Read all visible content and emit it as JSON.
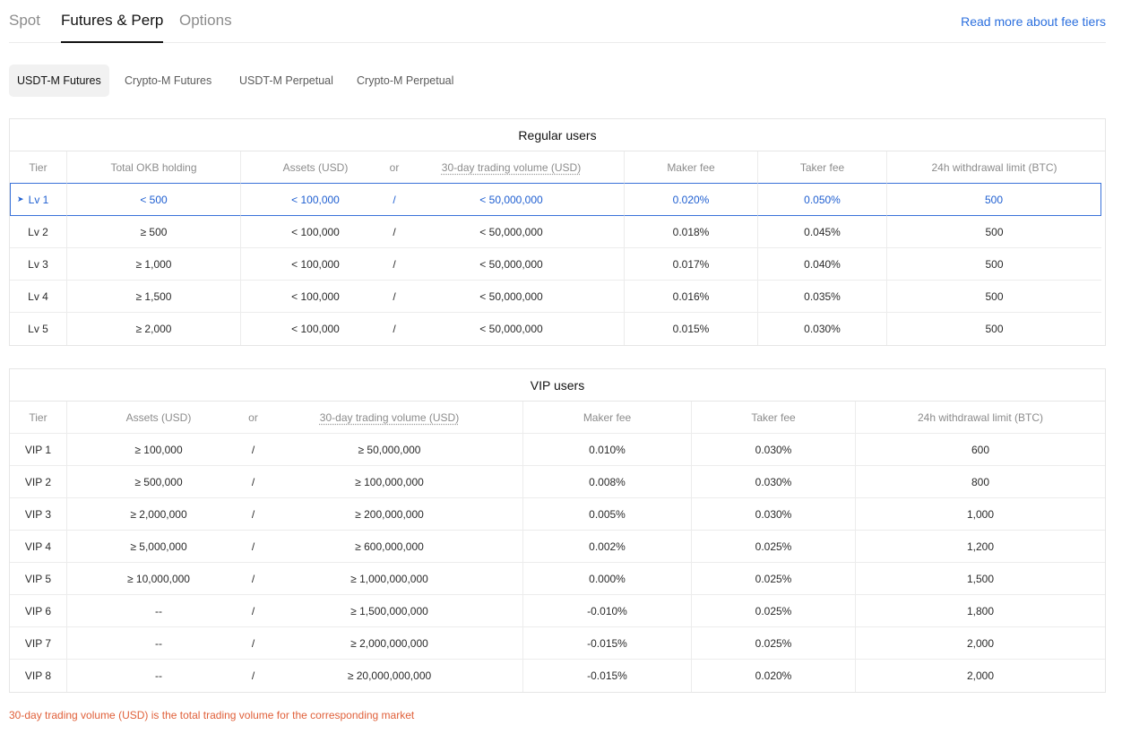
{
  "top_tabs": [
    "Spot",
    "Futures & Perp",
    "Options"
  ],
  "read_more": "Read more about fee tiers",
  "sub_tabs": [
    "USDT-M Futures",
    "Crypto-M Futures",
    "USDT-M Perpetual",
    "Crypto-M Perpetual"
  ],
  "regular": {
    "title": "Regular users",
    "headers": [
      "Tier",
      "Total OKB holding",
      "Assets (USD)",
      "or",
      "30-day trading volume (USD)",
      "Maker fee",
      "Taker fee",
      "24h withdrawal limit (BTC)"
    ],
    "rows": [
      [
        "Lv 1",
        "< 500",
        "< 100,000",
        "/",
        "< 50,000,000",
        "0.020%",
        "0.050%",
        "500"
      ],
      [
        "Lv 2",
        "≥ 500",
        "< 100,000",
        "/",
        "< 50,000,000",
        "0.018%",
        "0.045%",
        "500"
      ],
      [
        "Lv 3",
        "≥ 1,000",
        "< 100,000",
        "/",
        "< 50,000,000",
        "0.017%",
        "0.040%",
        "500"
      ],
      [
        "Lv 4",
        "≥ 1,500",
        "< 100,000",
        "/",
        "< 50,000,000",
        "0.016%",
        "0.035%",
        "500"
      ],
      [
        "Lv 5",
        "≥ 2,000",
        "< 100,000",
        "/",
        "< 50,000,000",
        "0.015%",
        "0.030%",
        "500"
      ]
    ]
  },
  "vip": {
    "title": "VIP users",
    "headers": [
      "Tier",
      "Assets (USD)",
      "or",
      "30-day trading volume (USD)",
      "Maker fee",
      "Taker fee",
      "24h withdrawal limit (BTC)"
    ],
    "rows": [
      [
        "VIP 1",
        "≥ 100,000",
        "/",
        "≥ 50,000,000",
        "0.010%",
        "0.030%",
        "600"
      ],
      [
        "VIP 2",
        "≥ 500,000",
        "/",
        "≥ 100,000,000",
        "0.008%",
        "0.030%",
        "800"
      ],
      [
        "VIP 3",
        "≥ 2,000,000",
        "/",
        "≥ 200,000,000",
        "0.005%",
        "0.030%",
        "1,000"
      ],
      [
        "VIP 4",
        "≥ 5,000,000",
        "/",
        "≥ 600,000,000",
        "0.002%",
        "0.025%",
        "1,200"
      ],
      [
        "VIP 5",
        "≥ 10,000,000",
        "/",
        "≥ 1,000,000,000",
        "0.000%",
        "0.025%",
        "1,500"
      ],
      [
        "VIP 6",
        "--",
        "/",
        "≥ 1,500,000,000",
        "-0.010%",
        "0.025%",
        "1,800"
      ],
      [
        "VIP 7",
        "--",
        "/",
        "≥ 2,000,000,000",
        "-0.015%",
        "0.025%",
        "2,000"
      ],
      [
        "VIP 8",
        "--",
        "/",
        "≥ 20,000,000,000",
        "-0.015%",
        "0.020%",
        "2,000"
      ]
    ]
  },
  "footnote": "30-day trading volume (USD) is the total trading volume for the corresponding market",
  "colors": {
    "accent": "#2b6fde",
    "selected": "#1f5fd1",
    "footnote": "#e0603a"
  }
}
